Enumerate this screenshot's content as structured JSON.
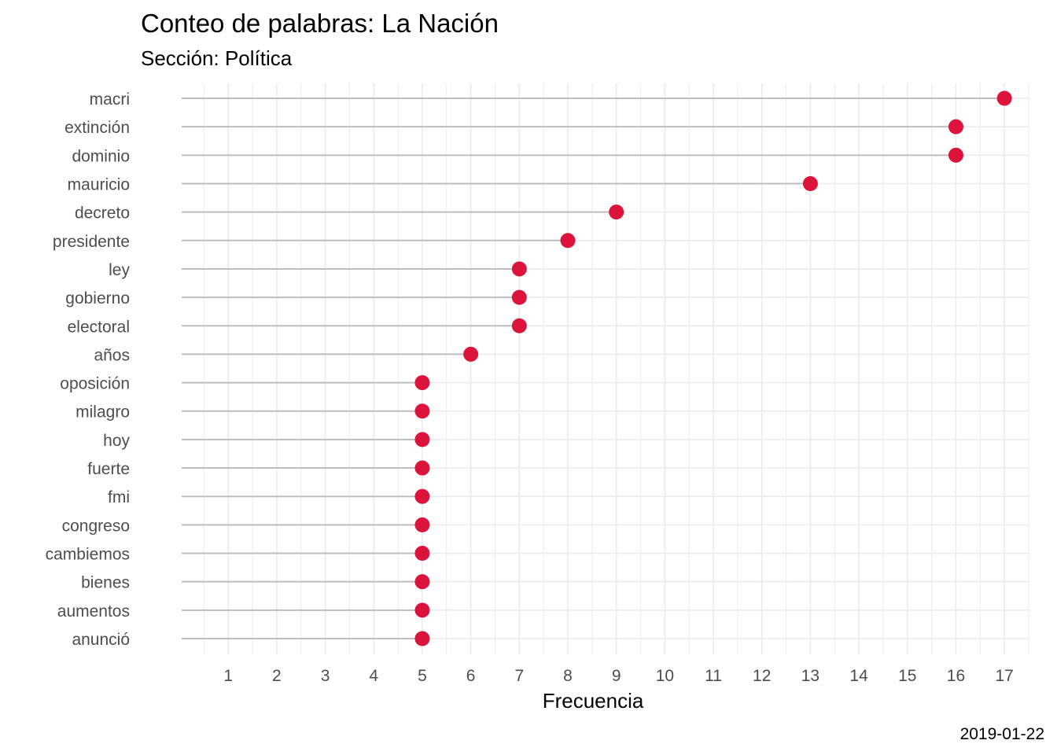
{
  "chart_data": {
    "type": "lollipop",
    "title": "Conteo de palabras: La Nación",
    "subtitle": "Sección: Política",
    "xlabel": "Frecuencia",
    "ylabel": "",
    "caption": "2019-01-22",
    "xlim": [
      0.04,
      17.5
    ],
    "xticks": [
      1,
      2,
      3,
      4,
      5,
      6,
      7,
      8,
      9,
      10,
      11,
      12,
      13,
      14,
      15,
      16,
      17
    ],
    "grid": true,
    "categories": [
      "macri",
      "extinción",
      "dominio",
      "mauricio",
      "decreto",
      "presidente",
      "ley",
      "gobierno",
      "electoral",
      "años",
      "oposición",
      "milagro",
      "hoy",
      "fuerte",
      "fmi",
      "congreso",
      "cambiemos",
      "bienes",
      "aumentos",
      "anunció"
    ],
    "values": [
      17,
      16,
      16,
      13,
      9,
      8,
      7,
      7,
      7,
      6,
      5,
      5,
      5,
      5,
      5,
      5,
      5,
      5,
      5,
      5
    ],
    "colors": {
      "point": "#DC143C",
      "segment": "#bebebe",
      "grid": "#ebebeb"
    }
  }
}
